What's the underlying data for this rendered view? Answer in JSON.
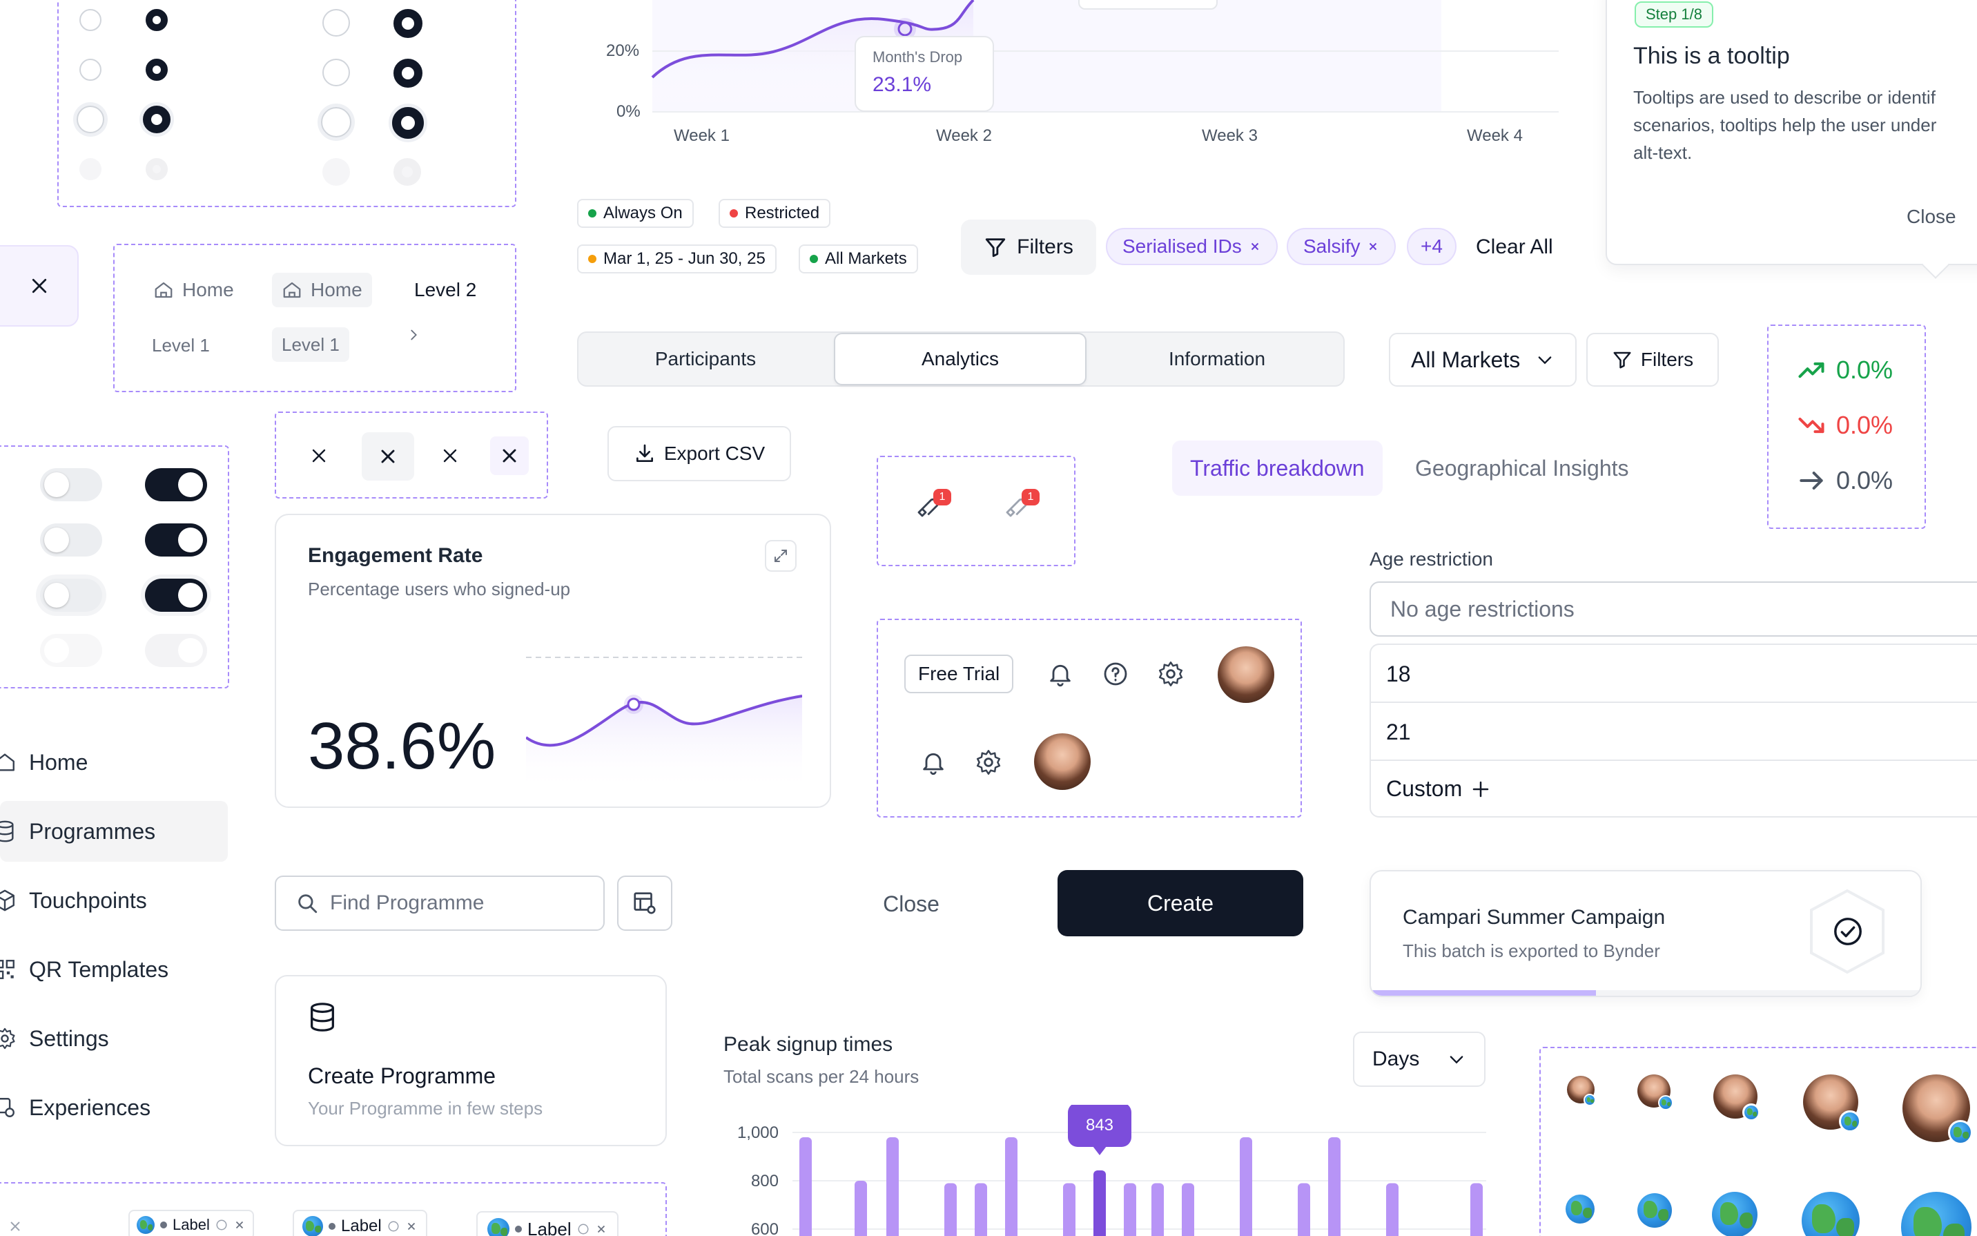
{
  "area_chart": {
    "y_ticks": [
      "20%",
      "0%"
    ],
    "x_ticks": [
      "Week 1",
      "Week 2",
      "Week 3",
      "Week 4"
    ],
    "tooltip_title": "Month's Drop",
    "tooltip_value": "23.1%"
  },
  "tour_tooltip": {
    "step": "Step 1/8",
    "title": "This is a tooltip",
    "body_lines": [
      "Tooltips are used to describe or identif",
      "scenarios, tooltips help the user under",
      "alt-text."
    ],
    "close": "Close"
  },
  "status_chips": [
    {
      "label": "Always On",
      "color": "#16a34a"
    },
    {
      "label": "Restricted",
      "color": "#ef4444"
    },
    {
      "label": "Mar 1, 25 - Jun 30, 25",
      "color": "#f59e0b"
    },
    {
      "label": "All Markets",
      "color": "#16a34a"
    }
  ],
  "filter_bar": {
    "filters_label": "Filters",
    "pills": [
      "Serialised IDs",
      "Salsify"
    ],
    "more": "+4",
    "clear_all": "Clear All"
  },
  "breadcrumbs": {
    "home_1": "Home",
    "home_2": "Home",
    "level_2": "Level 2",
    "level_1a": "Level 1",
    "level_1b": "Level 1"
  },
  "segmented_tabs": [
    "Participants",
    "Analytics",
    "Information"
  ],
  "segmented_active": "Analytics",
  "market_select": "All Markets",
  "filters_button": "Filters",
  "trends": [
    {
      "value": "0.0%",
      "direction": "up",
      "color": "#16a34a"
    },
    {
      "value": "0.0%",
      "direction": "down",
      "color": "#ef4444"
    },
    {
      "value": "0.0%",
      "direction": "flat",
      "color": "#4b5563"
    }
  ],
  "export_button": "Export CSV",
  "notification_badges": [
    "1",
    "1"
  ],
  "insight_tabs": {
    "active": "Traffic breakdown",
    "inactive": "Geographical Insights"
  },
  "engagement_card": {
    "title": "Engagement Rate",
    "subtitle": "Percentage users who signed-up",
    "value": "38.6%"
  },
  "header_actions": {
    "free_trial": "Free Trial"
  },
  "age_restriction": {
    "label": "Age restriction",
    "placeholder": "No age restrictions",
    "options": [
      "18",
      "21",
      "Custom"
    ]
  },
  "sidebar": {
    "items": [
      {
        "label": "Home",
        "icon": "home-icon"
      },
      {
        "label": "Programmes",
        "icon": "database-icon"
      },
      {
        "label": "Touchpoints",
        "icon": "cube-icon"
      },
      {
        "label": "QR Templates",
        "icon": "qr-icon"
      },
      {
        "label": "Settings",
        "icon": "gear-icon"
      },
      {
        "label": "Experiences",
        "icon": "experience-icon"
      }
    ],
    "active": "Programmes"
  },
  "search": {
    "placeholder": "Find Programme"
  },
  "dialog_actions": {
    "close": "Close",
    "create": "Create"
  },
  "campaign_card": {
    "title": "Campari Summer Campaign",
    "subtitle": "This batch is exported to Bynder",
    "progress": 0.41
  },
  "create_card": {
    "title": "Create Programme",
    "subtitle": "Your Programme in few steps"
  },
  "days_select": "Days",
  "chart_data": {
    "type": "bar",
    "title": "Peak signup times",
    "subtitle": "Total scans per 24 hours",
    "y_ticks": [
      "1,000",
      "800",
      "600"
    ],
    "ylim": [
      500,
      1000
    ],
    "values": [
      980,
      800,
      980,
      790,
      790,
      980,
      790,
      843,
      790,
      790,
      790,
      980,
      790,
      980,
      790,
      790
    ],
    "highlight_index": 7,
    "highlight_label": "843",
    "color": "#b794f6",
    "highlight_color": "#7c4ddb"
  },
  "tag_labels": [
    "Label",
    "Label",
    "Label"
  ]
}
